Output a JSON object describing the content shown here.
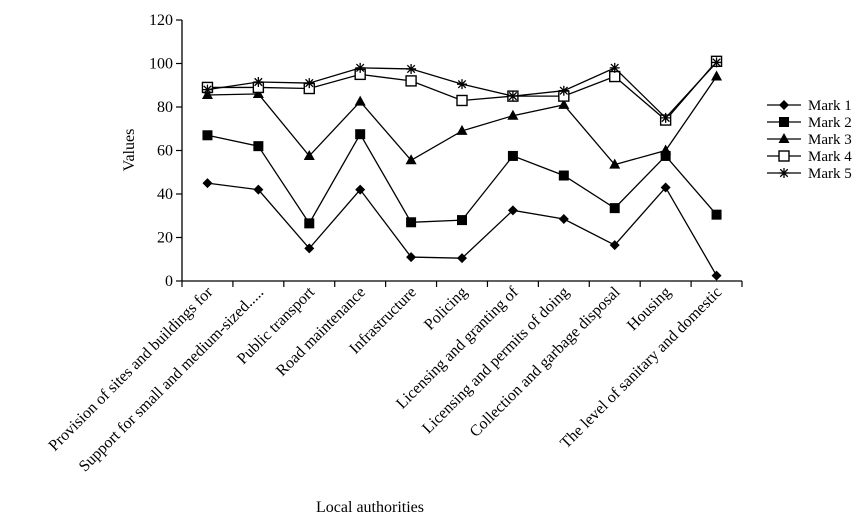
{
  "chart_data": {
    "type": "line",
    "title": "",
    "xlabel": "Local authorities",
    "ylabel": "Values",
    "ylim": [
      0,
      120
    ],
    "yticks": [
      0,
      20,
      40,
      60,
      80,
      100,
      120
    ],
    "grid": false,
    "legend_position": "right",
    "categories": [
      "Provision of sites and buildings for",
      "Support for small and medium-sized.....",
      "Public transport",
      "Road maintenance",
      "Infrastructure",
      "Policing",
      "Licensing and granting of",
      "Licensing and permits of doing",
      "Collection and garbage disposal",
      "Housing",
      "The level of sanitary and domestic"
    ],
    "series": [
      {
        "name": "Mark 1",
        "marker": "diamond",
        "values": [
          45,
          42,
          15,
          42,
          11,
          10.5,
          32.5,
          28.5,
          16.5,
          43,
          2.5
        ]
      },
      {
        "name": "Mark 2",
        "marker": "filled-square",
        "values": [
          67,
          62,
          26.5,
          67.5,
          27,
          28,
          57.5,
          48.5,
          33.5,
          57.5,
          30.5
        ]
      },
      {
        "name": "Mark 3",
        "marker": "triangle",
        "values": [
          85.5,
          86,
          57.5,
          82.5,
          55.5,
          69,
          76,
          81,
          53.5,
          60,
          94
        ]
      },
      {
        "name": "Mark 4",
        "marker": "open-square",
        "values": [
          89,
          89,
          88.5,
          95,
          92,
          83,
          85,
          85,
          94,
          74,
          101
        ]
      },
      {
        "name": "Mark 5",
        "marker": "star",
        "values": [
          88,
          91.5,
          91,
          98,
          97.5,
          90.5,
          85,
          87.5,
          98,
          75,
          100.5
        ]
      }
    ]
  }
}
